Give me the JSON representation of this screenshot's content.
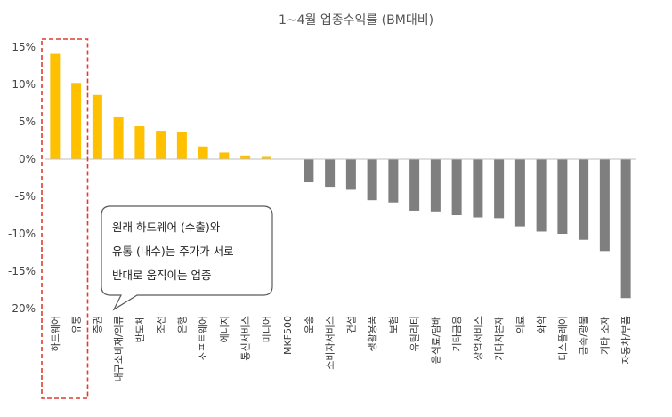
{
  "chart_data": {
    "type": "bar",
    "title": "1~4월 업종수익률 (BM대비)",
    "xlabel": "",
    "ylabel": "",
    "ylim": [
      -20,
      15
    ],
    "yticks": [
      15,
      10,
      5,
      0,
      -5,
      -10,
      -15,
      -20
    ],
    "ytick_labels": [
      "15%",
      "10%",
      "5%",
      "0%",
      "-5%",
      "-10%",
      "-15%",
      "-20%"
    ],
    "grid": false,
    "categories": [
      "하드웨어",
      "유통",
      "증권",
      "내구소비재/의류",
      "반도체",
      "조선",
      "은행",
      "소프트웨어",
      "에너지",
      "통신서비스",
      "미디어",
      "MKF500",
      "운송",
      "소비자서비스",
      "건설",
      "생활용품",
      "보험",
      "유틸리티",
      "음식료/담배",
      "기타금융",
      "상업서비스",
      "기타자본재",
      "의료",
      "화학",
      "디스플레이",
      "금속/광물",
      "기타 소재",
      "자동차/부품"
    ],
    "values": [
      14.1,
      10.2,
      8.6,
      5.6,
      4.4,
      3.8,
      3.6,
      1.7,
      0.9,
      0.5,
      0.3,
      0,
      -3.1,
      -3.7,
      -4.1,
      -5.5,
      -5.8,
      -6.9,
      -7.0,
      -7.5,
      -7.8,
      -7.9,
      -9.0,
      -9.7,
      -10.0,
      -10.8,
      -12.3,
      -18.6
    ],
    "colors": {
      "positive": "#FFC000",
      "negative": "#7F7F7F",
      "highlight_box": "#E03C31"
    },
    "highlight": [
      "하드웨어",
      "유통"
    ],
    "annotation": {
      "lines": [
        "원래 하드웨어 (수출)와",
        "유통 (내수)는 주가가 서로",
        "반대로 움직이는 업종"
      ]
    }
  }
}
